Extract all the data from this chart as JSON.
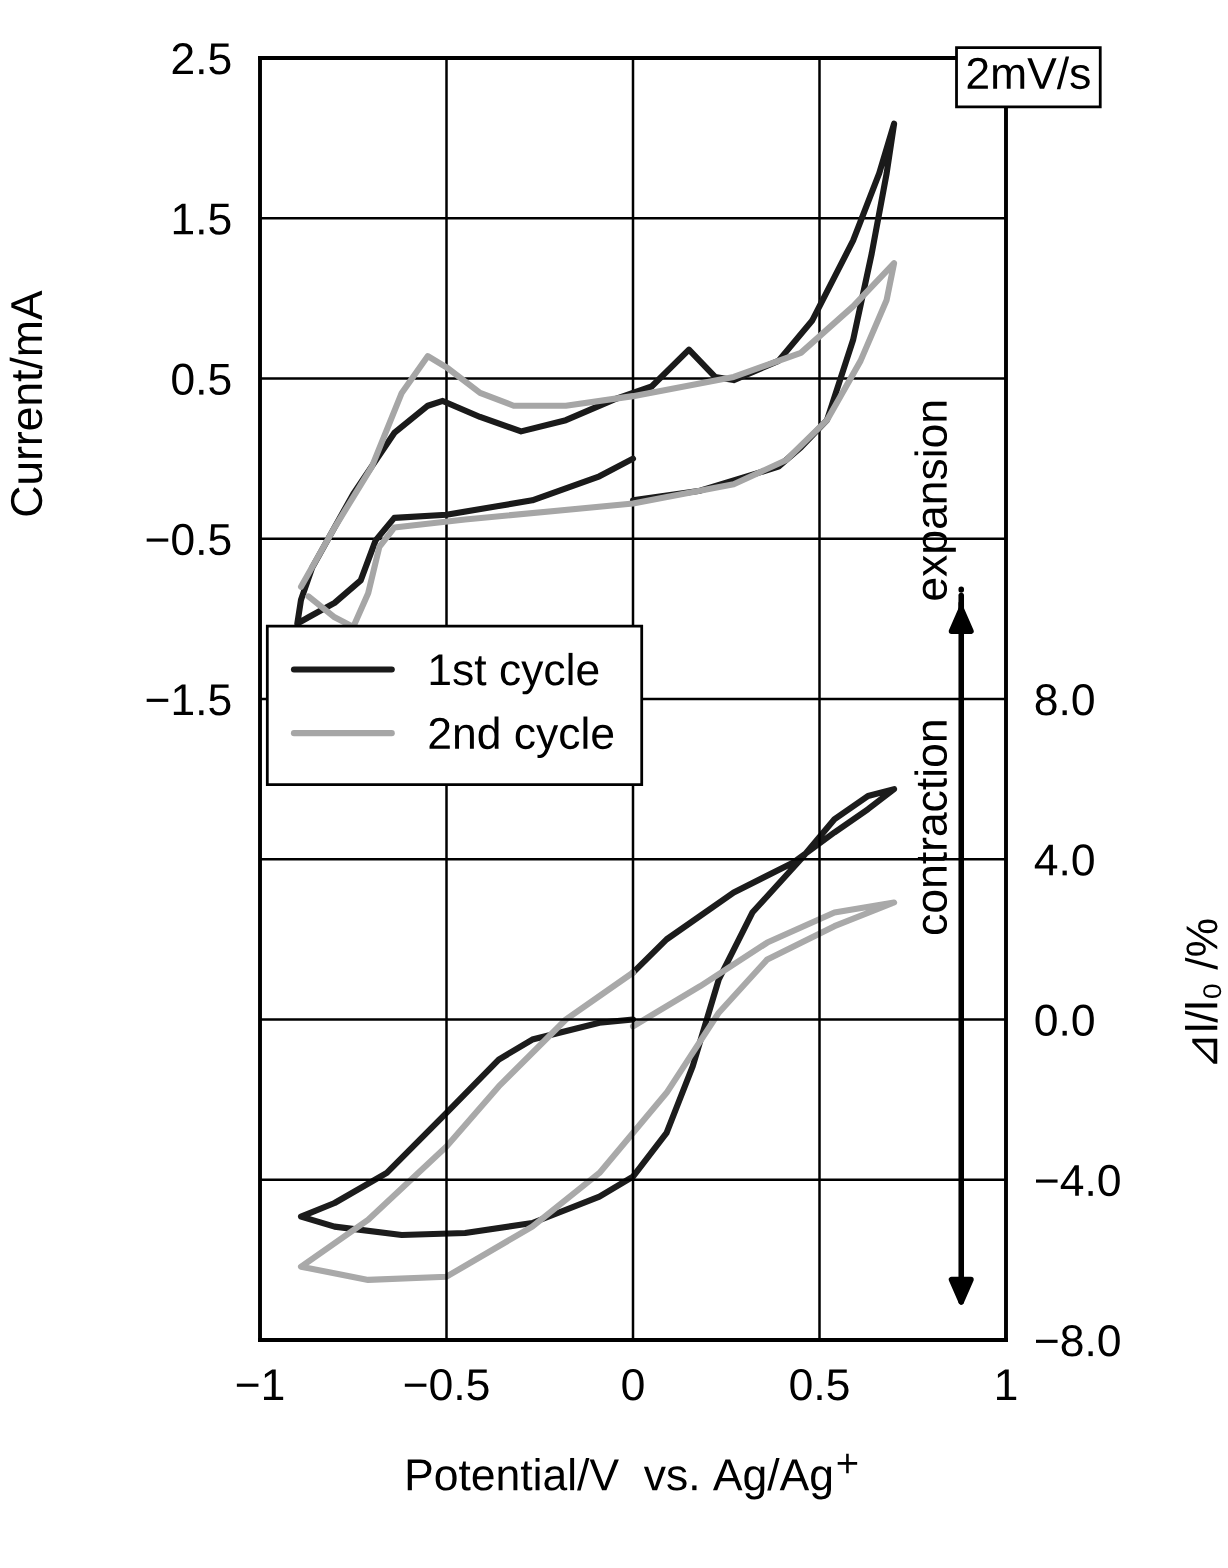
{
  "chart_data": {
    "type": "line",
    "xlabel": "Potential/V  vs. Ag/Ag$^{+}$",
    "ylabel": "Current/mA",
    "y2label": "⊿l/l₀ /%",
    "xlim": [
      -1,
      1
    ],
    "xticks": [
      {
        "value": -1,
        "label": "−1"
      },
      {
        "value": -0.5,
        "label": "−0.5"
      },
      0,
      0.5,
      1
    ],
    "ylim": [
      -5.5,
      2.5
    ],
    "yticks": [
      2.5,
      1.5,
      0.5,
      {
        "value": -0.5,
        "label": "−0.5"
      },
      {
        "value": -1.5,
        "label": "−1.5"
      },
      {
        "value": -2.5,
        "label": null
      },
      {
        "value": -3.5,
        "label": null
      },
      {
        "value": -4.5,
        "label": null
      }
    ],
    "y2lim": [
      -8,
      24
    ],
    "y2ticks": [
      {
        "value": 8,
        "label": "8.0"
      },
      {
        "value": 4,
        "label": "4.0"
      },
      {
        "value": 0,
        "label": "0.0"
      },
      {
        "value": -4,
        "label": "−4.0"
      },
      {
        "value": -8,
        "label": "−8.0"
      }
    ],
    "grid": true,
    "legend": "center left",
    "marker": "none",
    "line_style": "solid",
    "annotations": [
      "2mV/s",
      "expansion",
      "contraction"
    ],
    "series": [
      {
        "name": "1st cycle",
        "color": "#1a1a1a",
        "x": [
          0.0,
          -0.09,
          -0.27,
          -0.5,
          -0.64,
          -0.69,
          -0.73,
          -0.8,
          -0.87,
          -0.9,
          -0.89,
          -0.86,
          -0.75,
          -0.64,
          -0.55,
          -0.51,
          -0.41,
          -0.3,
          -0.18,
          -0.05,
          0.05,
          0.15,
          0.22,
          0.27,
          0.39,
          0.48,
          0.59,
          0.66,
          0.7,
          0.68,
          0.64,
          0.59,
          0.52,
          0.45,
          0.39,
          0.18,
          0.0
        ],
        "values": [
          0.0,
          -0.11,
          -0.26,
          -0.35,
          -0.37,
          -0.51,
          -0.76,
          -0.9,
          -0.99,
          -1.03,
          -0.88,
          -0.68,
          -0.22,
          0.16,
          0.33,
          0.36,
          0.26,
          0.17,
          0.24,
          0.37,
          0.45,
          0.68,
          0.51,
          0.49,
          0.61,
          0.86,
          1.36,
          1.78,
          2.09,
          1.78,
          1.28,
          0.74,
          0.24,
          0.07,
          -0.05,
          -0.2,
          -0.26
        ]
      },
      {
        "name": "2nd cycle",
        "color": "#a6a6a6",
        "x": [
          -0.89,
          -0.8,
          -0.7,
          -0.62,
          -0.55,
          -0.5,
          -0.41,
          -0.32,
          -0.18,
          0.0,
          0.27,
          0.45,
          0.59,
          0.7,
          0.68,
          0.61,
          0.52,
          0.41,
          0.27,
          0.0,
          -0.45,
          -0.64,
          -0.68,
          -0.71,
          -0.75,
          -0.8,
          -0.87
        ],
        "values": [
          -0.8,
          -0.43,
          -0.05,
          0.41,
          0.64,
          0.57,
          0.41,
          0.33,
          0.33,
          0.39,
          0.51,
          0.66,
          0.95,
          1.22,
          0.99,
          0.61,
          0.24,
          -0.01,
          -0.16,
          -0.28,
          -0.38,
          -0.43,
          -0.55,
          -0.84,
          -1.05,
          -0.99,
          -0.86
        ]
      },
      {
        "color": "#1c1c1c",
        "axis": "y2",
        "x": [
          0.0,
          -0.09,
          -0.27,
          -0.36,
          -0.5,
          -0.66,
          -0.8,
          -0.89,
          -0.8,
          -0.62,
          -0.45,
          -0.27,
          -0.09,
          0.0,
          0.09,
          0.16,
          0.23,
          0.32,
          0.45,
          0.54,
          0.63,
          0.7,
          0.63,
          0.54,
          0.43,
          0.27,
          0.09,
          0.0
        ],
        "values": [
          0.0,
          -0.08,
          -0.5,
          -1.0,
          -2.33,
          -3.83,
          -4.58,
          -4.92,
          -5.17,
          -5.38,
          -5.33,
          -5.08,
          -4.42,
          -3.92,
          -2.83,
          -1.17,
          1.0,
          2.67,
          4.0,
          5.0,
          5.58,
          5.75,
          5.25,
          4.67,
          3.92,
          3.17,
          2.0,
          1.17
        ]
      },
      {
        "color": "#a9a9a9",
        "axis": "y2",
        "x": [
          0.0,
          -0.18,
          -0.36,
          -0.5,
          -0.71,
          -0.89,
          -0.71,
          -0.5,
          -0.27,
          -0.09,
          0.09,
          0.23,
          0.36,
          0.54,
          0.7,
          0.54,
          0.36,
          0.18,
          0.0
        ],
        "values": [
          1.17,
          0.0,
          -1.67,
          -3.17,
          -5.0,
          -6.17,
          -6.5,
          -6.42,
          -5.17,
          -3.83,
          -1.83,
          0.17,
          1.5,
          2.33,
          2.92,
          2.67,
          1.92,
          0.83,
          -0.17
        ]
      }
    ]
  }
}
